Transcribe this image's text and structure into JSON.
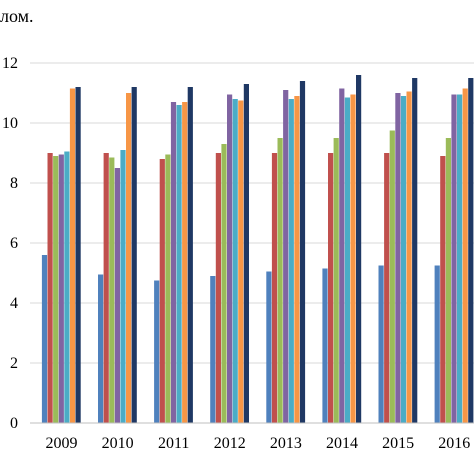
{
  "header_fragment": "лом.",
  "chart_data": {
    "type": "bar",
    "categories": [
      "2009",
      "2010",
      "2011",
      "2012",
      "2013",
      "2014",
      "2015",
      "2016"
    ],
    "y_ticks": [
      "0",
      "2",
      "4",
      "6",
      "8",
      "10",
      "12"
    ],
    "ylim": [
      0,
      12
    ],
    "grid": true,
    "legend": "none",
    "series": [
      {
        "color": "#4F81BD",
        "values": [
          5.6,
          4.95,
          4.75,
          4.9,
          5.05,
          5.15,
          5.25,
          5.25
        ]
      },
      {
        "color": "#C0504D",
        "values": [
          9.0,
          9.0,
          8.8,
          9.0,
          9.0,
          9.0,
          9.0,
          8.9
        ]
      },
      {
        "color": "#9BBB59",
        "values": [
          8.9,
          8.85,
          8.95,
          9.3,
          9.5,
          9.5,
          9.75,
          9.5
        ]
      },
      {
        "color": "#8064A2",
        "values": [
          8.95,
          8.5,
          10.7,
          10.95,
          11.1,
          11.15,
          11.0,
          10.95
        ]
      },
      {
        "color": "#4BACC6",
        "values": [
          9.05,
          9.1,
          10.6,
          10.8,
          10.8,
          10.85,
          10.9,
          10.95
        ]
      },
      {
        "color": "#F79646",
        "values": [
          11.15,
          11.0,
          10.7,
          10.75,
          10.9,
          10.95,
          11.05,
          11.15
        ]
      },
      {
        "color": "#1F3864",
        "values": [
          11.2,
          11.2,
          11.2,
          11.3,
          11.4,
          11.6,
          11.5,
          11.5
        ]
      }
    ]
  }
}
